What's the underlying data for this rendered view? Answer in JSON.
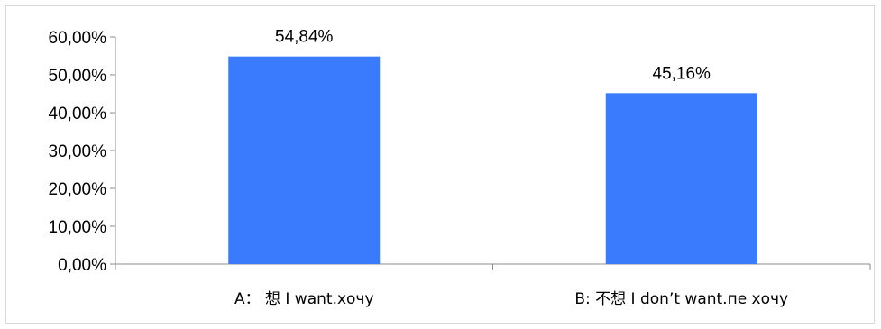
{
  "chart_data": {
    "type": "bar",
    "categories": [
      "A： 想 I want.хочу",
      "B: 不想 I don’t want.пе хочу"
    ],
    "values": [
      54.84,
      45.16
    ],
    "data_labels": [
      "54,84%",
      "45,16%"
    ],
    "ylim": [
      0,
      60
    ],
    "yticks": [
      0,
      10,
      20,
      30,
      40,
      50,
      60
    ],
    "ytick_labels": [
      "0,00%",
      "10,00%",
      "20,00%",
      "30,00%",
      "40,00%",
      "50,00%",
      "60,00%"
    ],
    "title": "",
    "xlabel": "",
    "ylabel": "",
    "grid": false,
    "legend": "none",
    "colors": {
      "bar": "#3a7bfd",
      "axis": "#8c8c8c"
    }
  }
}
